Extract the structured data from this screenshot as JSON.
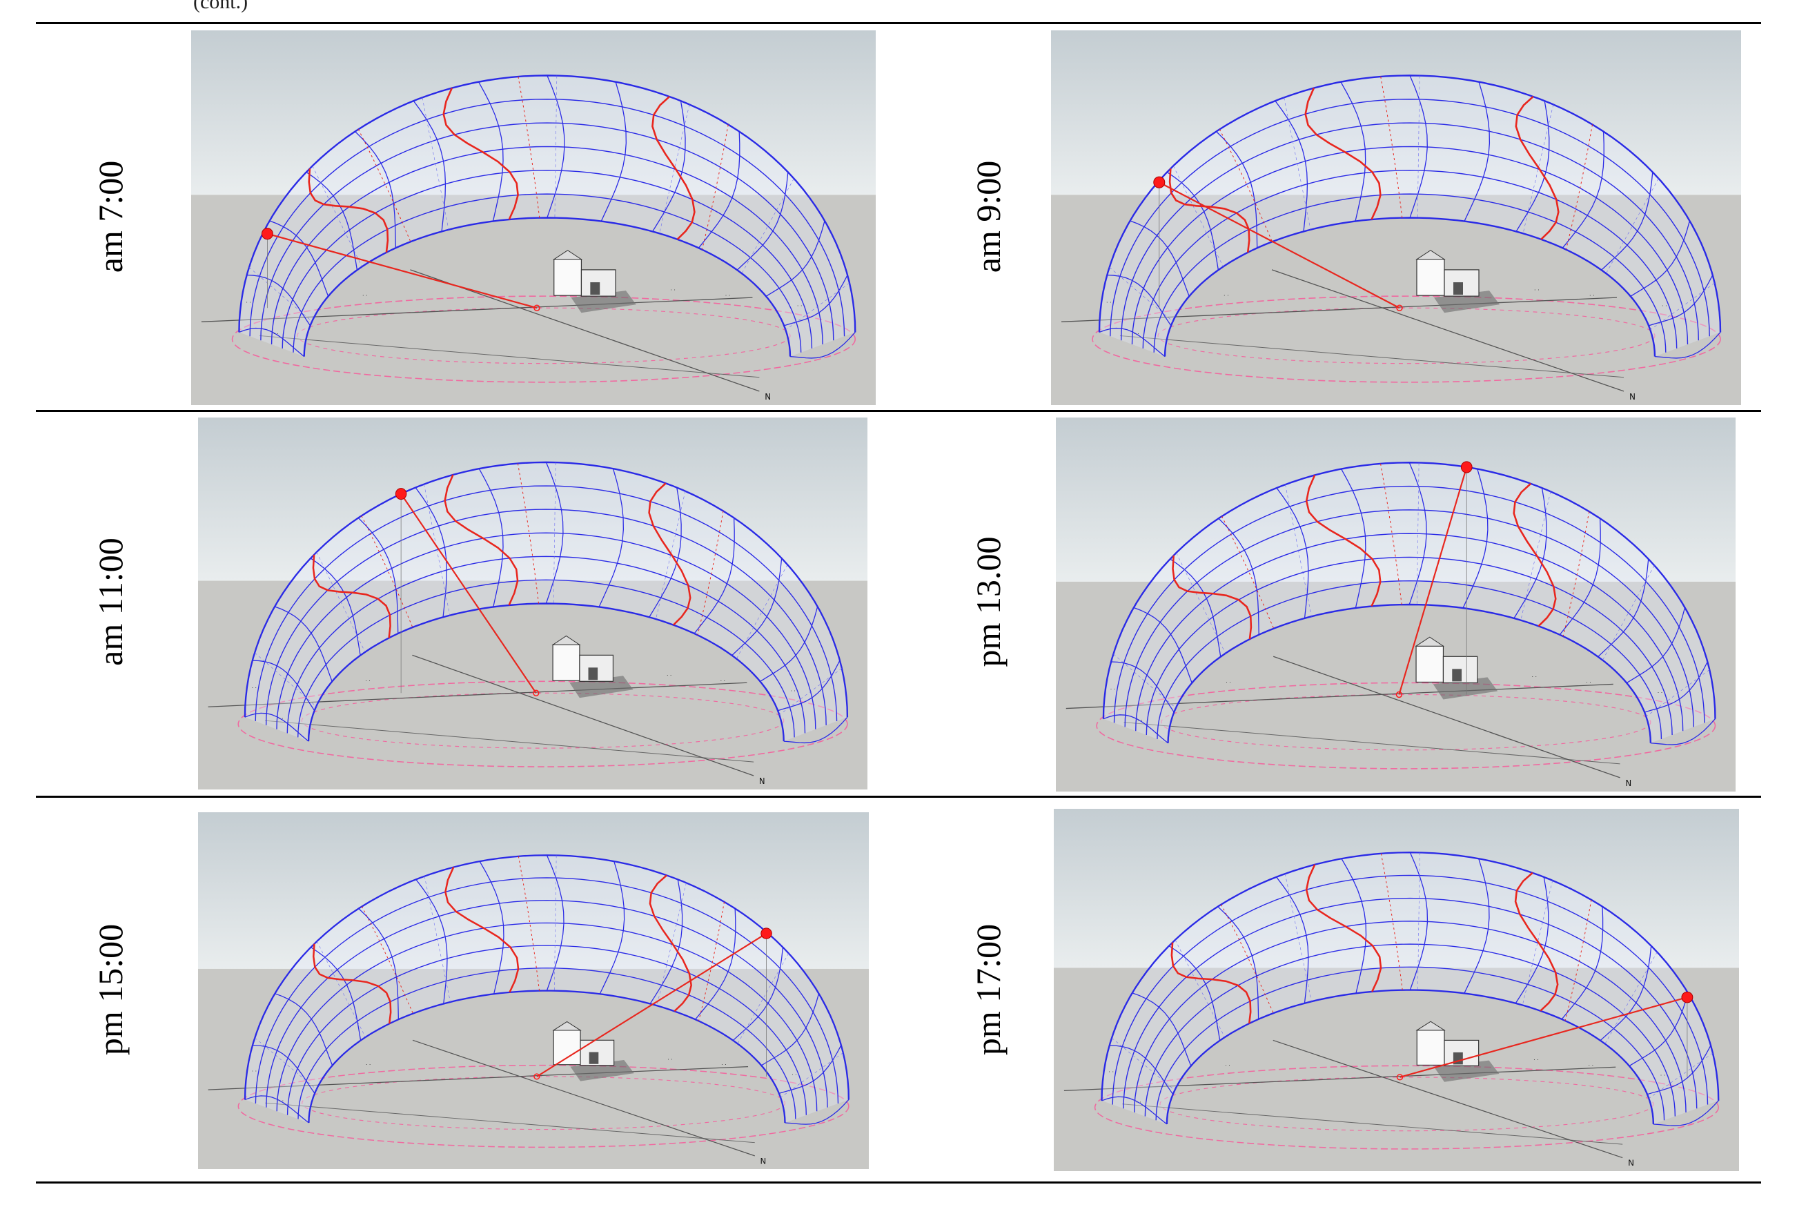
{
  "top_fragment": "(cont.)",
  "panels": [
    {
      "label": "am 7:00",
      "sun_u": 0.13,
      "sun_v": 0.02
    },
    {
      "label": "am 9:00",
      "sun_u": 0.2,
      "sun_v": 0.78
    },
    {
      "label": "am 11:00",
      "sun_u": 0.34,
      "sun_v": 0.99
    },
    {
      "label": "pm 13.00",
      "sun_u": 0.56,
      "sun_v": 0.99
    },
    {
      "label": "pm 15:00",
      "sun_u": 0.76,
      "sun_v": 0.78
    },
    {
      "label": "pm 17:00",
      "sun_u": 0.86,
      "sun_v": 0.35
    }
  ],
  "north_label": "N",
  "colors": {
    "sky_top": "#c4cdd2",
    "sky_bottom": "#e9edee",
    "ground": "#c8c8c5",
    "dome_grid": "#2a2ae6",
    "seasonal_line": "#e8261e",
    "ground_ellipse": "#f06aa0",
    "sun": "#ff1a1a"
  }
}
